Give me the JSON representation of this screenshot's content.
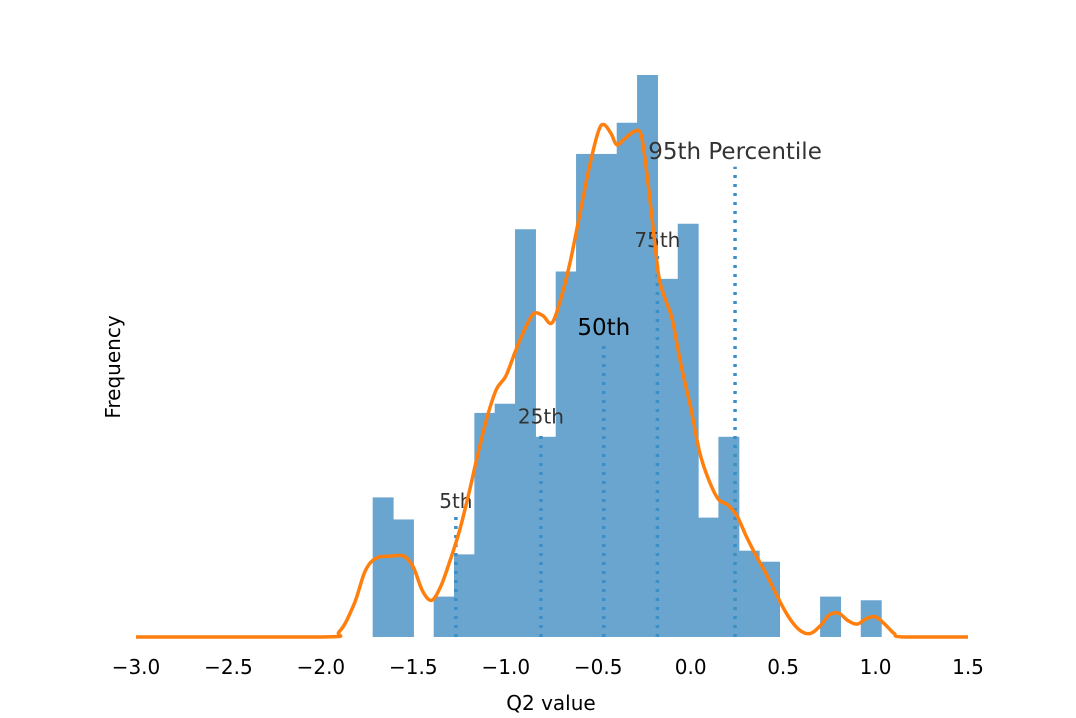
{
  "chart_data": {
    "type": "bar",
    "xlabel": "Q2 value",
    "ylabel": "Frequency",
    "xlim": [
      -3.0,
      1.5
    ],
    "ylim": [
      0,
      30
    ],
    "x_ticks": [
      "−3.0",
      "−2.5",
      "−2.0",
      "−1.5",
      "−1.0",
      "−0.5",
      "0.0",
      "0.5",
      "1.0",
      "1.5"
    ],
    "x_tick_values": [
      -3.0,
      -2.5,
      -2.0,
      -1.5,
      -1.0,
      -0.5,
      0.0,
      0.5,
      1.0,
      1.5
    ],
    "y_ticks_visible": false,
    "grid": false,
    "histogram": {
      "color": "#6aa5cf",
      "bins": [
        {
          "x0": -1.72,
          "x1": -1.61,
          "count": 7.6
        },
        {
          "x0": -1.61,
          "x1": -1.5,
          "count": 6.4
        },
        {
          "x0": -1.39,
          "x1": -1.28,
          "count": 2.2
        },
        {
          "x0": -1.28,
          "x1": -1.17,
          "count": 4.5
        },
        {
          "x0": -1.17,
          "x1": -1.06,
          "count": 12.2
        },
        {
          "x0": -1.06,
          "x1": -0.95,
          "count": 12.7
        },
        {
          "x0": -0.95,
          "x1": -0.84,
          "count": 22.2
        },
        {
          "x0": -0.84,
          "x1": -0.73,
          "count": 10.9
        },
        {
          "x0": -0.73,
          "x1": -0.62,
          "count": 19.9
        },
        {
          "x0": -0.62,
          "x1": -0.51,
          "count": 26.3
        },
        {
          "x0": -0.51,
          "x1": -0.4,
          "count": 26.3
        },
        {
          "x0": -0.4,
          "x1": -0.29,
          "count": 28.0
        },
        {
          "x0": -0.29,
          "x1": -0.18,
          "count": 30.6
        },
        {
          "x0": -0.18,
          "x1": -0.07,
          "count": 19.5
        },
        {
          "x0": -0.07,
          "x1": 0.04,
          "count": 22.5
        },
        {
          "x0": 0.04,
          "x1": 0.15,
          "count": 6.5
        },
        {
          "x0": 0.15,
          "x1": 0.26,
          "count": 10.9
        },
        {
          "x0": 0.26,
          "x1": 0.37,
          "count": 4.7
        },
        {
          "x0": 0.37,
          "x1": 0.48,
          "count": 4.1
        },
        {
          "x0": 0.7,
          "x1": 0.81,
          "count": 2.2
        },
        {
          "x0": 0.92,
          "x1": 1.03,
          "count": 2.0
        }
      ]
    },
    "kde": {
      "color": "#ff7f0e",
      "points": [
        [
          -3.0,
          0.0
        ],
        [
          -2.0,
          0.0
        ],
        [
          -1.9,
          0.3
        ],
        [
          -1.82,
          1.8
        ],
        [
          -1.76,
          3.6
        ],
        [
          -1.7,
          4.3
        ],
        [
          -1.62,
          4.4
        ],
        [
          -1.55,
          4.4
        ],
        [
          -1.5,
          3.8
        ],
        [
          -1.45,
          2.5
        ],
        [
          -1.4,
          2.0
        ],
        [
          -1.35,
          2.8
        ],
        [
          -1.3,
          4.2
        ],
        [
          -1.25,
          5.8
        ],
        [
          -1.2,
          7.8
        ],
        [
          -1.15,
          10.0
        ],
        [
          -1.1,
          12.0
        ],
        [
          -1.05,
          13.5
        ],
        [
          -1.0,
          14.2
        ],
        [
          -0.95,
          15.5
        ],
        [
          -0.9,
          16.7
        ],
        [
          -0.85,
          17.6
        ],
        [
          -0.8,
          17.5
        ],
        [
          -0.75,
          17.1
        ],
        [
          -0.7,
          18.5
        ],
        [
          -0.65,
          20.5
        ],
        [
          -0.6,
          23.0
        ],
        [
          -0.55,
          25.5
        ],
        [
          -0.5,
          27.5
        ],
        [
          -0.47,
          27.9
        ],
        [
          -0.43,
          27.4
        ],
        [
          -0.4,
          26.8
        ],
        [
          -0.36,
          27.1
        ],
        [
          -0.31,
          27.5
        ],
        [
          -0.27,
          27.4
        ],
        [
          -0.24,
          25.5
        ],
        [
          -0.2,
          22.0
        ],
        [
          -0.17,
          19.5
        ],
        [
          -0.13,
          18.2
        ],
        [
          -0.1,
          17.3
        ],
        [
          -0.05,
          14.7
        ],
        [
          0.0,
          12.5
        ],
        [
          0.05,
          10.0
        ],
        [
          0.1,
          8.5
        ],
        [
          0.15,
          7.5
        ],
        [
          0.2,
          7.2
        ],
        [
          0.25,
          6.6
        ],
        [
          0.3,
          5.5
        ],
        [
          0.35,
          4.5
        ],
        [
          0.4,
          3.6
        ],
        [
          0.45,
          2.6
        ],
        [
          0.5,
          1.6
        ],
        [
          0.55,
          0.8
        ],
        [
          0.6,
          0.3
        ],
        [
          0.65,
          0.2
        ],
        [
          0.7,
          0.6
        ],
        [
          0.75,
          1.2
        ],
        [
          0.8,
          1.3
        ],
        [
          0.85,
          0.9
        ],
        [
          0.9,
          0.7
        ],
        [
          0.95,
          1.0
        ],
        [
          1.0,
          1.1
        ],
        [
          1.05,
          0.7
        ],
        [
          1.1,
          0.2
        ],
        [
          1.15,
          0.0
        ],
        [
          1.5,
          0.0
        ]
      ]
    },
    "percentiles": [
      {
        "label": "5th",
        "x": -1.27,
        "y_top": 6.6,
        "font_size": 20,
        "color": "#333333"
      },
      {
        "label": "25th",
        "x": -0.81,
        "y_top": 11.2,
        "font_size": 20,
        "color": "#333333"
      },
      {
        "label": "50th",
        "x": -0.47,
        "y_top": 16.0,
        "font_size": 23,
        "color": "#000000"
      },
      {
        "label": "75th",
        "x": -0.18,
        "y_top": 20.8,
        "font_size": 20,
        "color": "#333333"
      },
      {
        "label": "95th Percentile",
        "x": 0.24,
        "y_top": 25.6,
        "font_size": 23,
        "color": "#333333"
      }
    ],
    "percentile_line_color": "#3a8fc7"
  }
}
